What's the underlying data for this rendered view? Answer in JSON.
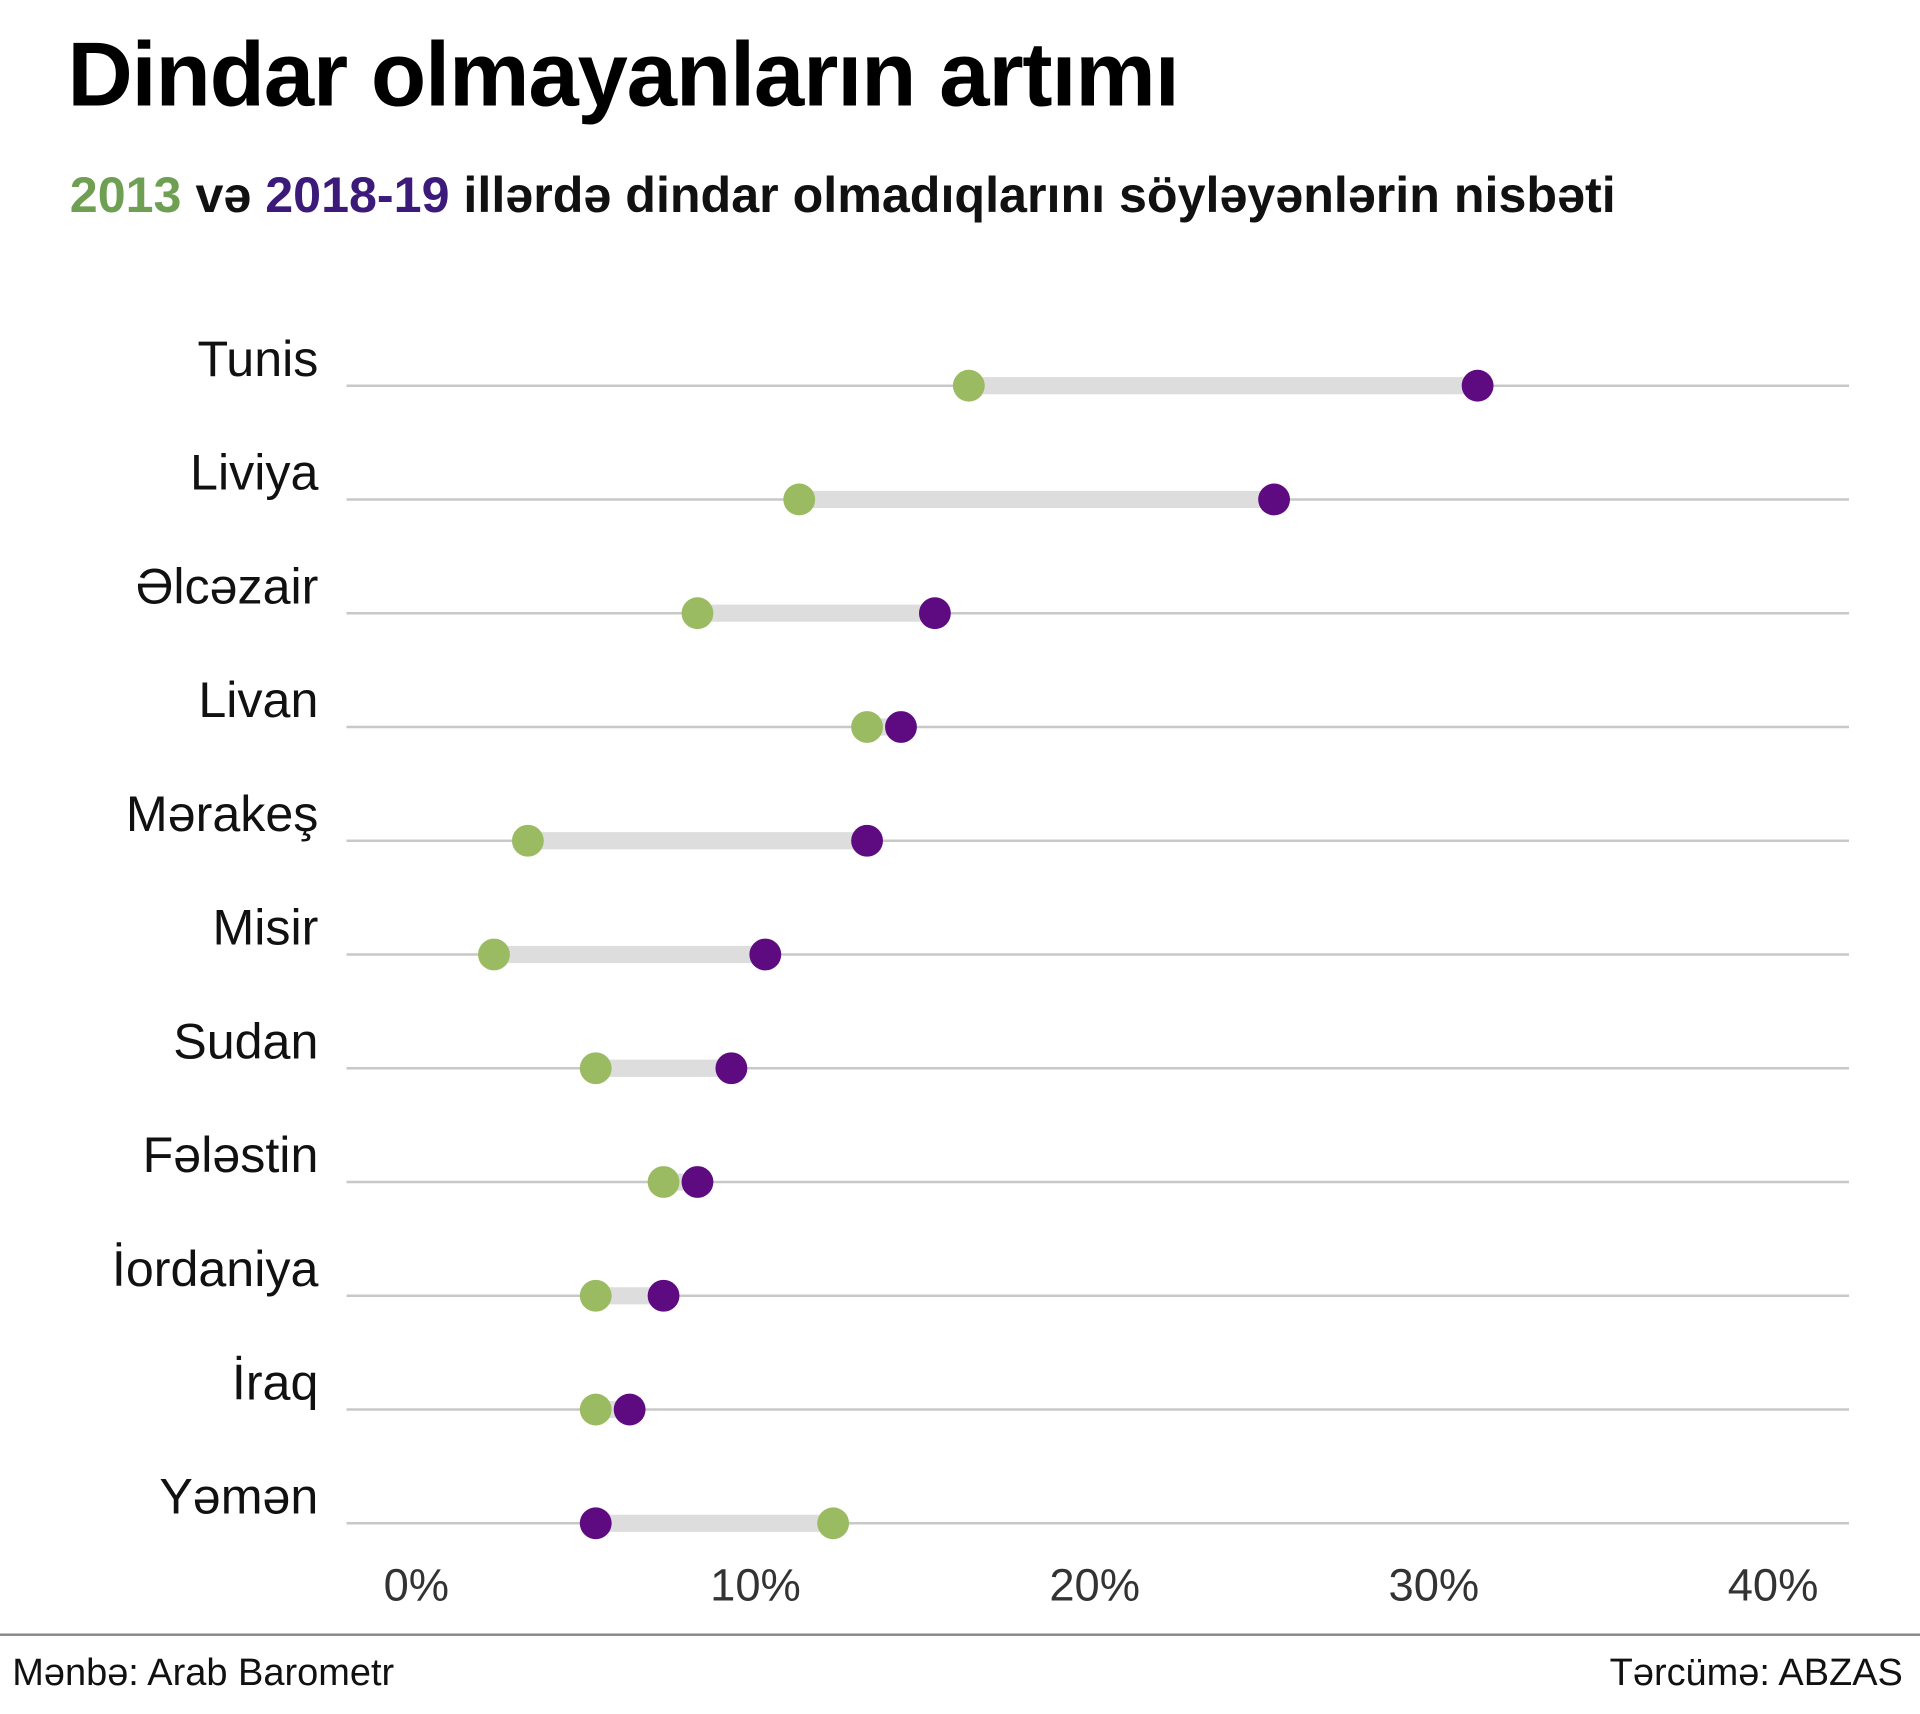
{
  "title": "Dindar olmayanların artımı",
  "subtitle": {
    "year1": "2013",
    "connector": " və ",
    "year2": "2018-19",
    "rest": " illərdə dindar olmadıqlarını söyləyənlərin nisbəti"
  },
  "colors": {
    "y2013": "#9bbb62",
    "y2018": "#5e0a80",
    "bar": "#dddddd",
    "grid": "#c8c8c8"
  },
  "chart_data": {
    "type": "dumbbell",
    "title": "Dindar olmayanların artımı",
    "series": [
      {
        "name": "2013",
        "values": [
          16,
          11,
          8,
          13,
          3,
          2,
          5,
          7,
          5,
          5,
          12
        ]
      },
      {
        "name": "2018-19",
        "values": [
          31,
          25,
          15,
          14,
          13,
          10,
          9,
          8,
          7,
          6,
          5
        ]
      }
    ],
    "categories": [
      "Tunis",
      "Liviya",
      "Əlcəzair",
      "Livan",
      "Mərakeş",
      "Misir",
      "Sudan",
      "Fələstin",
      "İordaniya",
      "İraq",
      "Yəmən"
    ],
    "xlim": [
      0,
      40
    ],
    "xticks": [
      "0%",
      "10%",
      "20%",
      "30%",
      "40%"
    ],
    "xtick_values": [
      0,
      10,
      20,
      30,
      40
    ],
    "grid": true
  },
  "footer": {
    "source": "Mənbə: Arab Barometr",
    "translation": "Tərcümə: ABZAS"
  }
}
